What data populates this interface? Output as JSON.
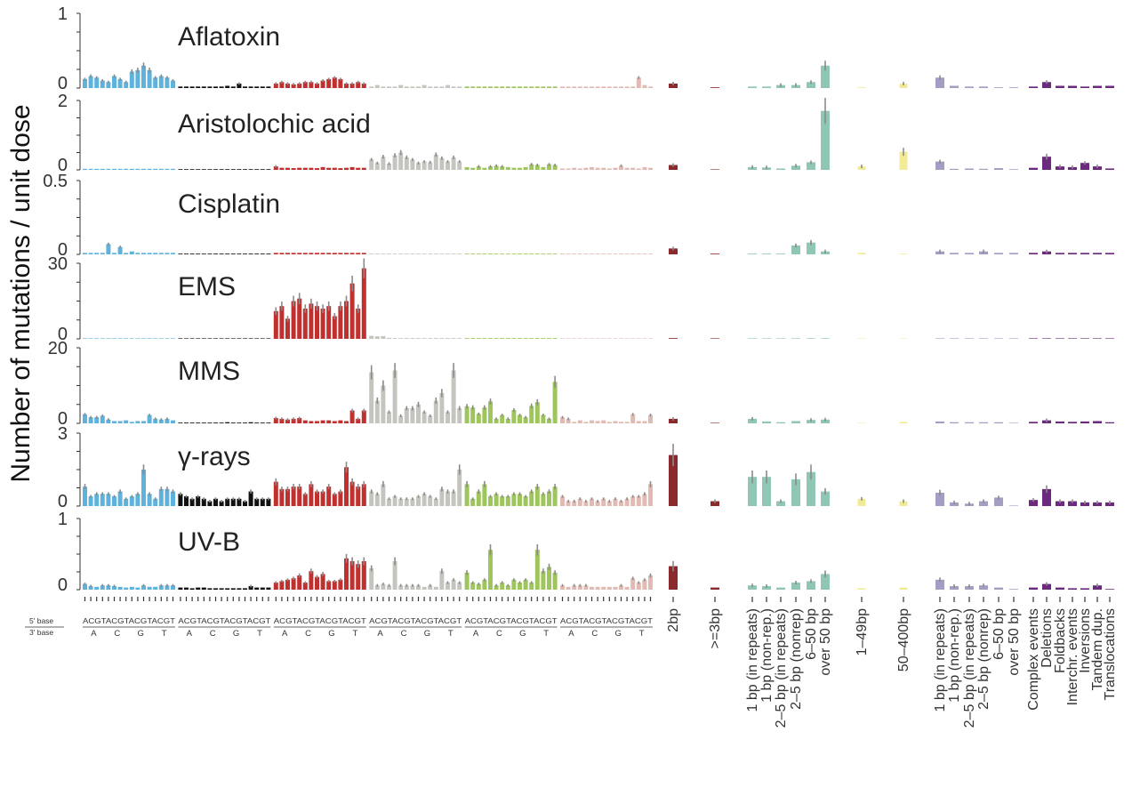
{
  "chart_data": {
    "type": "bar",
    "ylabel": "Number of mutations / unit dose",
    "base_row_labels": [
      "5' base",
      "3' base"
    ],
    "base_pattern": "ACGTACGTACGTACGT",
    "base_sub": [
      "A",
      "C",
      "G",
      "T"
    ],
    "sub_colors": [
      "#5fb2dc",
      "#111111",
      "#c0302e",
      "#c5c5bf",
      "#9fc55d",
      "#e2bab4"
    ],
    "categories": [
      "2bp",
      ">=3bp",
      "1 bp (in repeats)",
      "1 bp (non-rep.)",
      "2–5 bp (in repeats)",
      "2–5 bp (nonrep)",
      "6–50 bp",
      "over 50 bp",
      "1–49bp",
      "50–400bp",
      "1 bp (in repeats)",
      "1 bp (non-rep.)",
      "2–5 bp (in repeats)",
      "2–5 bp (nonrep)",
      "6–50 bp",
      "over 50 bp",
      "Complex events",
      "Deletions",
      "Foldbacks",
      "Interchr. events",
      "Inversions",
      "Tandem dup.",
      "Translocations"
    ],
    "group_colors": [
      "#8b2a2c",
      "#8b2a2c",
      "#8fc6b6",
      "#8fc6b6",
      "#8fc6b6",
      "#8fc6b6",
      "#8fc6b6",
      "#8fc6b6",
      "#f2eb96",
      "#f2eb96",
      "#a39ec4",
      "#a39ec4",
      "#a39ec4",
      "#a39ec4",
      "#a39ec4",
      "#a39ec4",
      "#6b2a7e",
      "#6b2a7e",
      "#6b2a7e",
      "#6b2a7e",
      "#6b2a7e",
      "#6b2a7e",
      "#6b2a7e"
    ],
    "panels": [
      {
        "name": "Aflatoxin",
        "ymax_label": "1",
        "ymin_label": "0",
        "ymax": 1,
        "sbs": [
          [
            0.12,
            0.16,
            0.14,
            0.1,
            0.08,
            0.16,
            0.12,
            0.08,
            0.22,
            0.24,
            0.3,
            0.24,
            0.14,
            0.16,
            0.14,
            0.1
          ],
          [
            0.02,
            0.02,
            0.02,
            0.02,
            0.02,
            0.02,
            0.02,
            0.02,
            0.03,
            0.02,
            0.06,
            0.02,
            0.02,
            0.02,
            0.02,
            0.02
          ],
          [
            0.06,
            0.08,
            0.06,
            0.05,
            0.06,
            0.08,
            0.08,
            0.06,
            0.1,
            0.12,
            0.14,
            0.12,
            0.06,
            0.06,
            0.08,
            0.06
          ],
          [
            0.02,
            0.04,
            0.02,
            0.02,
            0.02,
            0.04,
            0.02,
            0.02,
            0.02,
            0.04,
            0.02,
            0.02,
            0.02,
            0.04,
            0.02,
            0.02
          ],
          [
            0.02,
            0.02,
            0.02,
            0.02,
            0.02,
            0.02,
            0.02,
            0.02,
            0.02,
            0.02,
            0.02,
            0.02,
            0.02,
            0.02,
            0.02,
            0.02
          ],
          [
            0.02,
            0.02,
            0.02,
            0.02,
            0.02,
            0.02,
            0.02,
            0.02,
            0.02,
            0.02,
            0.02,
            0.02,
            0.02,
            0.14,
            0.04,
            0.02
          ]
        ],
        "other": [
          0.06,
          0.01,
          0.02,
          0.02,
          0.04,
          0.04,
          0.08,
          0.3,
          0.01,
          0.06,
          0.14,
          0.03,
          0.02,
          0.02,
          0.01,
          0.01,
          0.02,
          0.08,
          0.03,
          0.03,
          0.02,
          0.03,
          0.03
        ]
      },
      {
        "name": "Aristolochic acid",
        "ymax_label": "2",
        "ymin_label": "0",
        "ymax": 2,
        "sbs": [
          [
            0.03,
            0.03,
            0.03,
            0.03,
            0.03,
            0.03,
            0.03,
            0.03,
            0.03,
            0.03,
            0.03,
            0.03,
            0.03,
            0.03,
            0.03,
            0.03
          ],
          [
            0.02,
            0.02,
            0.02,
            0.02,
            0.02,
            0.02,
            0.02,
            0.02,
            0.02,
            0.02,
            0.02,
            0.02,
            0.02,
            0.02,
            0.02,
            0.02
          ],
          [
            0.1,
            0.06,
            0.06,
            0.05,
            0.06,
            0.06,
            0.06,
            0.05,
            0.08,
            0.06,
            0.06,
            0.05,
            0.06,
            0.08,
            0.06,
            0.06
          ],
          [
            0.3,
            0.2,
            0.38,
            0.18,
            0.42,
            0.5,
            0.36,
            0.3,
            0.2,
            0.24,
            0.22,
            0.44,
            0.34,
            0.24,
            0.36,
            0.24
          ],
          [
            0.08,
            0.06,
            0.1,
            0.06,
            0.1,
            0.12,
            0.1,
            0.08,
            0.06,
            0.06,
            0.08,
            0.16,
            0.14,
            0.08,
            0.16,
            0.14
          ],
          [
            0.04,
            0.04,
            0.06,
            0.04,
            0.06,
            0.08,
            0.06,
            0.06,
            0.04,
            0.06,
            0.12,
            0.06,
            0.06,
            0.04,
            0.08,
            0.06
          ]
        ],
        "other": [
          0.14,
          0.01,
          0.08,
          0.07,
          0.04,
          0.12,
          0.22,
          1.7,
          0.1,
          0.52,
          0.24,
          0.03,
          0.04,
          0.03,
          0.05,
          0.02,
          0.06,
          0.38,
          0.1,
          0.08,
          0.2,
          0.1,
          0.04
        ]
      },
      {
        "name": "Cisplatin",
        "ymax_label": "0.5",
        "ymin_label": "0",
        "ymax": 0.5,
        "sbs": [
          [
            0.01,
            0.01,
            0.01,
            0.01,
            0.07,
            0.01,
            0.05,
            0.01,
            0.02,
            0.01,
            0.01,
            0.01,
            0.01,
            0.01,
            0.01,
            0.01
          ],
          [
            0.005,
            0.005,
            0.005,
            0.005,
            0.005,
            0.005,
            0.005,
            0.005,
            0.005,
            0.005,
            0.005,
            0.005,
            0.005,
            0.005,
            0.005,
            0.005
          ],
          [
            0.01,
            0.01,
            0.01,
            0.01,
            0.01,
            0.01,
            0.01,
            0.01,
            0.01,
            0.01,
            0.01,
            0.01,
            0.01,
            0.01,
            0.01,
            0.01
          ],
          [
            0.005,
            0.005,
            0.005,
            0.005,
            0.005,
            0.005,
            0.005,
            0.005,
            0.005,
            0.005,
            0.005,
            0.005,
            0.005,
            0.005,
            0.005,
            0.005
          ],
          [
            0.005,
            0.005,
            0.005,
            0.005,
            0.005,
            0.005,
            0.005,
            0.005,
            0.005,
            0.005,
            0.005,
            0.005,
            0.005,
            0.005,
            0.005,
            0.005
          ],
          [
            0.005,
            0.005,
            0.005,
            0.005,
            0.005,
            0.005,
            0.005,
            0.005,
            0.005,
            0.005,
            0.005,
            0.005,
            0.005,
            0.005,
            0.005,
            0.005
          ]
        ],
        "other": [
          0.04,
          0.005,
          0.005,
          0.005,
          0.005,
          0.06,
          0.08,
          0.02,
          0.01,
          0.005,
          0.02,
          0.01,
          0.01,
          0.02,
          0.01,
          0.01,
          0.01,
          0.02,
          0.01,
          0.01,
          0.01,
          0.01,
          0.01
        ]
      },
      {
        "name": "EMS",
        "ymax_label": "30",
        "ymin_label": "0",
        "ymax": 30,
        "sbs": [
          [
            0.1,
            0.1,
            0.1,
            0.1,
            0.1,
            0.1,
            0.1,
            0.1,
            0.1,
            0.1,
            0.1,
            0.1,
            0.1,
            0.1,
            0.1,
            0.1
          ],
          [
            0.05,
            0.05,
            0.05,
            0.05,
            0.05,
            0.05,
            0.05,
            0.05,
            0.05,
            0.05,
            0.05,
            0.05,
            0.05,
            0.05,
            0.05,
            0.05
          ],
          [
            11,
            13,
            8,
            15,
            16,
            12,
            14,
            13,
            12,
            13,
            9,
            13,
            15,
            22,
            12,
            28
          ],
          [
            1.2,
            1.0,
            1.1,
            0.4,
            0.3,
            0.3,
            0.3,
            0.3,
            0.3,
            0.3,
            0.3,
            0.3,
            0.3,
            0.3,
            0.3,
            0.3
          ],
          [
            0.3,
            0.3,
            0.3,
            0.3,
            0.3,
            0.3,
            0.3,
            0.3,
            0.3,
            0.3,
            0.3,
            0.3,
            0.3,
            0.3,
            0.3,
            0.3
          ],
          [
            0.1,
            0.1,
            0.1,
            0.1,
            0.1,
            0.1,
            0.1,
            0.1,
            0.1,
            0.1,
            0.1,
            0.1,
            0.1,
            0.1,
            0.1,
            0.1
          ]
        ],
        "other": [
          0.3,
          0.05,
          0.05,
          0.05,
          0.05,
          0.05,
          0.05,
          0.05,
          0.05,
          0.05,
          0.05,
          0.05,
          0.05,
          0.05,
          0.05,
          0.05,
          0.05,
          0.05,
          0.05,
          0.05,
          0.05,
          0.05,
          0.05
        ]
      },
      {
        "name": "MMS",
        "ymax_label": "20",
        "ymin_label": "0",
        "ymax": 20,
        "sbs": [
          [
            2.4,
            1.6,
            1.6,
            2.0,
            1.0,
            0.6,
            0.6,
            0.8,
            0.4,
            0.6,
            0.6,
            2.2,
            1.2,
            1.0,
            1.2,
            0.8
          ],
          [
            0.2,
            0.2,
            0.2,
            0.2,
            0.2,
            0.2,
            0.2,
            0.2,
            0.3,
            0.2,
            0.2,
            0.2,
            0.3,
            0.2,
            0.2,
            0.2
          ],
          [
            1.4,
            1.2,
            1.0,
            1.2,
            1.4,
            0.8,
            0.6,
            0.6,
            0.8,
            0.8,
            0.6,
            0.8,
            0.6,
            3.4,
            1.2,
            3.4
          ],
          [
            13.5,
            6.0,
            10.0,
            3.0,
            14.0,
            2.0,
            4.0,
            4.0,
            5.0,
            3.0,
            2.0,
            6.0,
            8.0,
            3.0,
            14.0,
            4.0
          ],
          [
            4.5,
            4.2,
            2.5,
            4.2,
            5.8,
            1.2,
            2.2,
            1.2,
            3.5,
            2.2,
            1.6,
            4.6,
            5.6,
            2.2,
            1.2,
            11.0
          ],
          [
            1.6,
            1.2,
            0.4,
            0.8,
            0.4,
            0.8,
            0.6,
            0.8,
            0.4,
            0.6,
            0.4,
            0.4,
            2.4,
            0.6,
            0.6,
            2.2
          ]
        ],
        "other": [
          1.2,
          0.1,
          1.2,
          0.5,
          0.3,
          0.6,
          0.9,
          1.0,
          0.1,
          0.4,
          0.5,
          0.3,
          0.3,
          0.3,
          0.3,
          0.1,
          0.4,
          0.8,
          0.5,
          0.4,
          0.5,
          0.6,
          0.3
        ]
      },
      {
        "name": "γ-rays",
        "ymax_label": "3",
        "ymin_label": "0",
        "ymax": 3,
        "sbs": [
          [
            0.8,
            0.4,
            0.5,
            0.5,
            0.5,
            0.4,
            0.6,
            0.3,
            0.4,
            0.5,
            1.5,
            0.5,
            0.3,
            0.7,
            0.7,
            0.6
          ],
          [
            0.5,
            0.4,
            0.3,
            0.4,
            0.3,
            0.2,
            0.3,
            0.2,
            0.3,
            0.3,
            0.3,
            0.2,
            0.6,
            0.3,
            0.3,
            0.3
          ],
          [
            1.0,
            0.7,
            0.7,
            0.8,
            0.8,
            0.5,
            0.9,
            0.6,
            0.6,
            0.8,
            0.5,
            0.6,
            1.6,
            1.0,
            0.8,
            0.9
          ],
          [
            0.6,
            0.5,
            0.9,
            0.3,
            0.4,
            0.3,
            0.3,
            0.3,
            0.4,
            0.5,
            0.4,
            0.3,
            0.7,
            0.6,
            0.6,
            1.5
          ],
          [
            0.9,
            0.3,
            0.6,
            0.9,
            0.4,
            0.5,
            0.4,
            0.4,
            0.5,
            0.5,
            0.4,
            0.6,
            0.8,
            0.5,
            0.6,
            0.8
          ],
          [
            0.4,
            0.2,
            0.2,
            0.3,
            0.2,
            0.3,
            0.2,
            0.3,
            0.2,
            0.3,
            0.2,
            0.3,
            0.4,
            0.4,
            0.5,
            0.9
          ]
        ],
        "other": [
          2.1,
          0.2,
          1.2,
          1.2,
          0.2,
          1.1,
          1.4,
          0.6,
          0.3,
          0.2,
          0.55,
          0.15,
          0.1,
          0.2,
          0.35,
          0.02,
          0.25,
          0.7,
          0.2,
          0.2,
          0.15,
          0.15,
          0.15
        ]
      },
      {
        "name": "UV-B",
        "ymax_label": "1",
        "ymin_label": "0",
        "ymax": 1,
        "sbs": [
          [
            0.08,
            0.05,
            0.04,
            0.06,
            0.06,
            0.05,
            0.04,
            0.03,
            0.04,
            0.03,
            0.06,
            0.04,
            0.04,
            0.06,
            0.06,
            0.06
          ],
          [
            0.03,
            0.03,
            0.02,
            0.03,
            0.03,
            0.02,
            0.02,
            0.02,
            0.02,
            0.02,
            0.02,
            0.02,
            0.05,
            0.03,
            0.03,
            0.03
          ],
          [
            0.1,
            0.12,
            0.14,
            0.16,
            0.2,
            0.1,
            0.26,
            0.18,
            0.22,
            0.12,
            0.12,
            0.14,
            0.44,
            0.4,
            0.36,
            0.4
          ],
          [
            0.3,
            0.06,
            0.08,
            0.06,
            0.4,
            0.06,
            0.06,
            0.06,
            0.06,
            0.04,
            0.06,
            0.04,
            0.26,
            0.1,
            0.14,
            0.1
          ],
          [
            0.24,
            0.1,
            0.08,
            0.14,
            0.56,
            0.06,
            0.1,
            0.06,
            0.14,
            0.1,
            0.14,
            0.1,
            0.56,
            0.26,
            0.32,
            0.24
          ],
          [
            0.06,
            0.04,
            0.06,
            0.06,
            0.06,
            0.04,
            0.04,
            0.04,
            0.04,
            0.04,
            0.06,
            0.04,
            0.16,
            0.1,
            0.14,
            0.2
          ]
        ],
        "other": [
          0.33,
          0.03,
          0.06,
          0.05,
          0.03,
          0.1,
          0.12,
          0.22,
          0.02,
          0.03,
          0.14,
          0.05,
          0.05,
          0.06,
          0.03,
          0.01,
          0.03,
          0.08,
          0.03,
          0.02,
          0.02,
          0.06,
          0.01
        ]
      }
    ]
  }
}
